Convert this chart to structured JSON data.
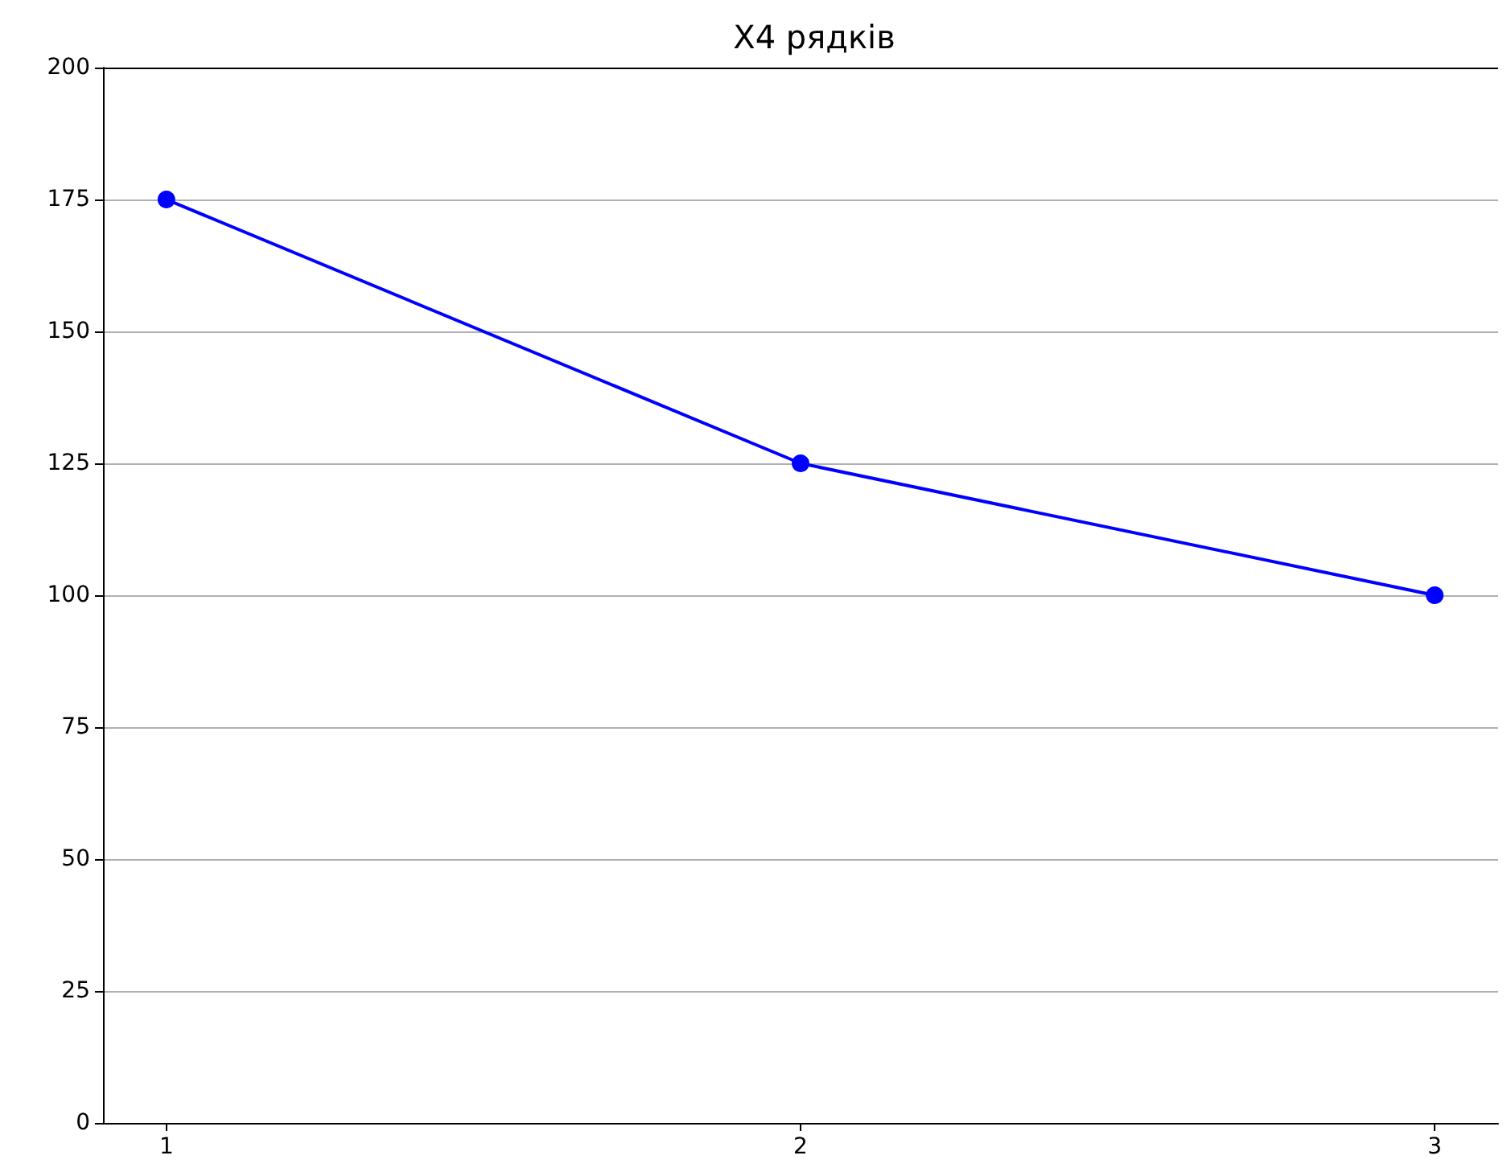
{
  "chart_data": {
    "type": "line",
    "title": "X4 рядків",
    "x": [
      1,
      2,
      3
    ],
    "series": [
      {
        "color": "#0000ff",
        "values": [
          175,
          125,
          100
        ]
      }
    ],
    "xlim": [
      0.9,
      3.1
    ],
    "xticks": [
      1,
      2,
      3
    ],
    "ylim": [
      0,
      200
    ],
    "yticks": [
      0,
      25,
      50,
      75,
      100,
      125,
      150,
      175,
      200
    ],
    "grid": "y",
    "marker": "circle",
    "line_style": "solid"
  }
}
